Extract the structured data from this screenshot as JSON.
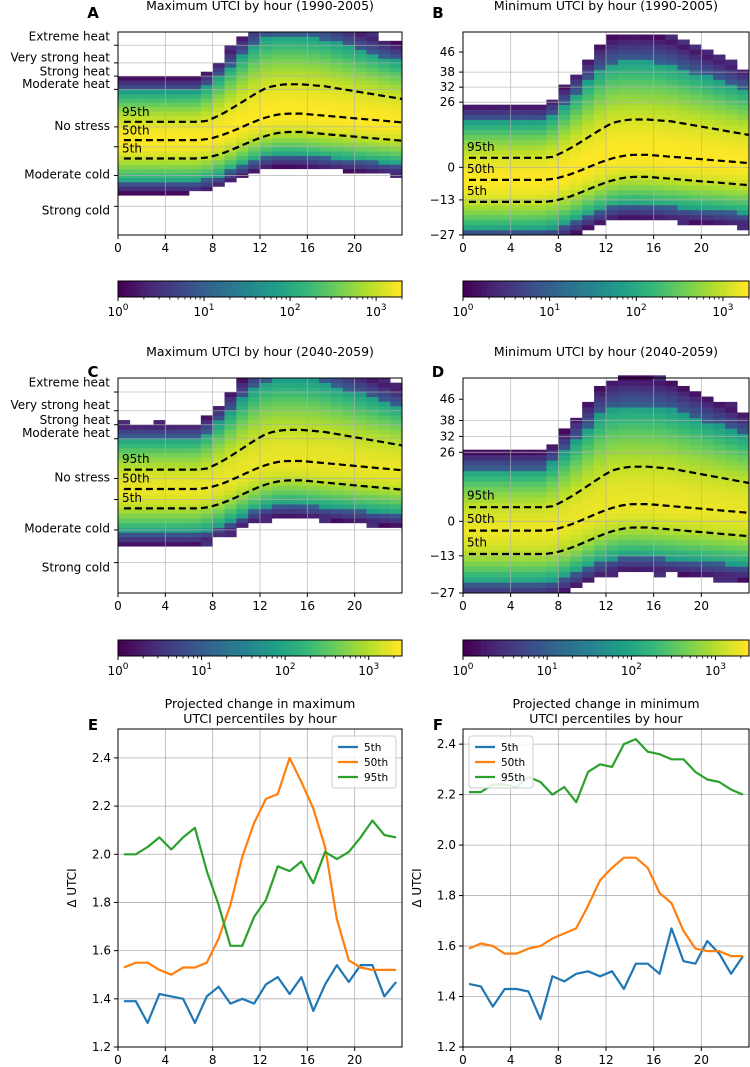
{
  "chart_data": [
    {
      "panel": "A",
      "type": "heatmap",
      "title": "Maximum UTCI by hour (1990-2005)",
      "x_ticks": [
        0,
        4,
        8,
        12,
        16,
        20
      ],
      "x_range": [
        0,
        24
      ],
      "y_range": [
        -40,
        52
      ],
      "stress_labels": [
        "Extreme heat",
        "Very strong heat",
        "Strong heat",
        "Moderate heat",
        "No stress",
        "Moderate cold",
        "Strong cold"
      ],
      "percentile_labels": [
        "95th",
        "50th",
        "5th"
      ],
      "colorbar": {
        "scale": "log",
        "tick_labels": [
          "10^0",
          "10^1",
          "10^2",
          "10^3"
        ],
        "max": 2000
      }
    },
    {
      "panel": "B",
      "type": "heatmap",
      "title": "Minimum UTCI by hour (1990-2005)",
      "x_ticks": [
        0,
        4,
        8,
        12,
        16,
        20
      ],
      "x_range": [
        0,
        24
      ],
      "y_range": [
        -27,
        54
      ],
      "y_ticks": [
        46,
        38,
        32,
        26,
        0,
        -13,
        -27
      ],
      "percentile_labels": [
        "95th",
        "50th",
        "5th"
      ],
      "colorbar": {
        "scale": "log",
        "tick_labels": [
          "10^0",
          "10^1",
          "10^2",
          "10^3"
        ],
        "max": 2000
      }
    },
    {
      "panel": "C",
      "type": "heatmap",
      "title": "Maximum UTCI by hour (2040-2059)",
      "x_ticks": [
        0,
        4,
        8,
        12,
        16,
        20
      ],
      "x_range": [
        0,
        24
      ],
      "y_range": [
        -40,
        52
      ],
      "stress_labels": [
        "Extreme heat",
        "Very strong heat",
        "Strong heat",
        "Moderate heat",
        "No stress",
        "Moderate cold",
        "Strong cold"
      ],
      "percentile_labels": [
        "95th",
        "50th",
        "5th"
      ],
      "colorbar": {
        "scale": "log",
        "tick_labels": [
          "10^0",
          "10^1",
          "10^2",
          "10^3"
        ],
        "max": 2500
      }
    },
    {
      "panel": "D",
      "type": "heatmap",
      "title": "Minimum UTCI by hour (2040-2059)",
      "x_ticks": [
        0,
        4,
        8,
        12,
        16,
        20
      ],
      "x_range": [
        0,
        24
      ],
      "y_range": [
        -27,
        54
      ],
      "y_ticks": [
        46,
        38,
        32,
        26,
        0,
        -13,
        -27
      ],
      "percentile_labels": [
        "95th",
        "50th",
        "5th"
      ],
      "colorbar": {
        "scale": "log",
        "tick_labels": [
          "10^0",
          "10^1",
          "10^2",
          "10^3"
        ],
        "max": 2500
      }
    },
    {
      "panel": "E",
      "type": "line",
      "title": [
        "Projected change in maximum",
        "UTCI percentiles by hour"
      ],
      "ylabel": "Δ UTCI",
      "x": [
        0,
        1,
        2,
        3,
        4,
        5,
        6,
        7,
        8,
        9,
        10,
        11,
        12,
        13,
        14,
        15,
        16,
        17,
        18,
        19,
        20,
        21,
        22,
        23
      ],
      "x_ticks": [
        0,
        4,
        8,
        12,
        16,
        20
      ],
      "y_ticks": [
        1.2,
        1.4,
        1.6,
        1.8,
        2.0,
        2.2,
        2.4
      ],
      "ylim": [
        1.2,
        2.52
      ],
      "xlim": [
        0,
        24
      ],
      "series": [
        {
          "name": "5th",
          "color": "#1f77b4",
          "values": [
            1.39,
            1.39,
            1.3,
            1.42,
            1.41,
            1.4,
            1.3,
            1.41,
            1.45,
            1.38,
            1.4,
            1.38,
            1.46,
            1.49,
            1.42,
            1.49,
            1.35,
            1.46,
            1.54,
            1.47,
            1.54,
            1.54,
            1.41,
            1.47
          ]
        },
        {
          "name": "50th",
          "color": "#ff7f0e",
          "values": [
            1.53,
            1.55,
            1.55,
            1.52,
            1.5,
            1.53,
            1.53,
            1.55,
            1.65,
            1.79,
            1.99,
            2.13,
            2.23,
            2.25,
            2.4,
            2.3,
            2.19,
            2.03,
            1.73,
            1.56,
            1.53,
            1.52,
            1.52,
            1.52
          ]
        },
        {
          "name": "95th",
          "color": "#2ca02c",
          "values": [
            2.0,
            2.0,
            2.03,
            2.07,
            2.02,
            2.07,
            2.11,
            1.93,
            1.79,
            1.62,
            1.62,
            1.74,
            1.81,
            1.95,
            1.93,
            1.97,
            1.88,
            2.01,
            1.98,
            2.01,
            2.07,
            2.14,
            2.08,
            2.07
          ]
        }
      ]
    },
    {
      "panel": "F",
      "type": "line",
      "title": [
        "Projected change in minimum",
        "UTCI percentiles by hour"
      ],
      "ylabel": "Δ UTCI",
      "x": [
        0,
        1,
        2,
        3,
        4,
        5,
        6,
        7,
        8,
        9,
        10,
        11,
        12,
        13,
        14,
        15,
        16,
        17,
        18,
        19,
        20,
        21,
        22,
        23
      ],
      "x_ticks": [
        0,
        4,
        8,
        12,
        16,
        20
      ],
      "y_ticks": [
        1.2,
        1.4,
        1.6,
        1.8,
        2.0,
        2.2,
        2.4
      ],
      "ylim": [
        1.2,
        2.46
      ],
      "xlim": [
        0,
        24
      ],
      "series": [
        {
          "name": "5th",
          "color": "#1f77b4",
          "values": [
            1.45,
            1.44,
            1.36,
            1.43,
            1.43,
            1.42,
            1.31,
            1.48,
            1.46,
            1.49,
            1.5,
            1.48,
            1.5,
            1.43,
            1.53,
            1.53,
            1.49,
            1.67,
            1.54,
            1.53,
            1.62,
            1.57,
            1.49,
            1.56
          ]
        },
        {
          "name": "50th",
          "color": "#ff7f0e",
          "values": [
            1.59,
            1.61,
            1.6,
            1.57,
            1.57,
            1.59,
            1.6,
            1.63,
            1.65,
            1.67,
            1.76,
            1.86,
            1.91,
            1.95,
            1.95,
            1.91,
            1.81,
            1.77,
            1.66,
            1.59,
            1.58,
            1.58,
            1.56,
            1.56
          ]
        },
        {
          "name": "95th",
          "color": "#2ca02c",
          "values": [
            2.21,
            2.21,
            2.24,
            2.24,
            2.23,
            2.27,
            2.25,
            2.2,
            2.23,
            2.17,
            2.29,
            2.32,
            2.31,
            2.4,
            2.42,
            2.37,
            2.36,
            2.34,
            2.34,
            2.29,
            2.26,
            2.25,
            2.22,
            2.2
          ]
        }
      ]
    }
  ]
}
